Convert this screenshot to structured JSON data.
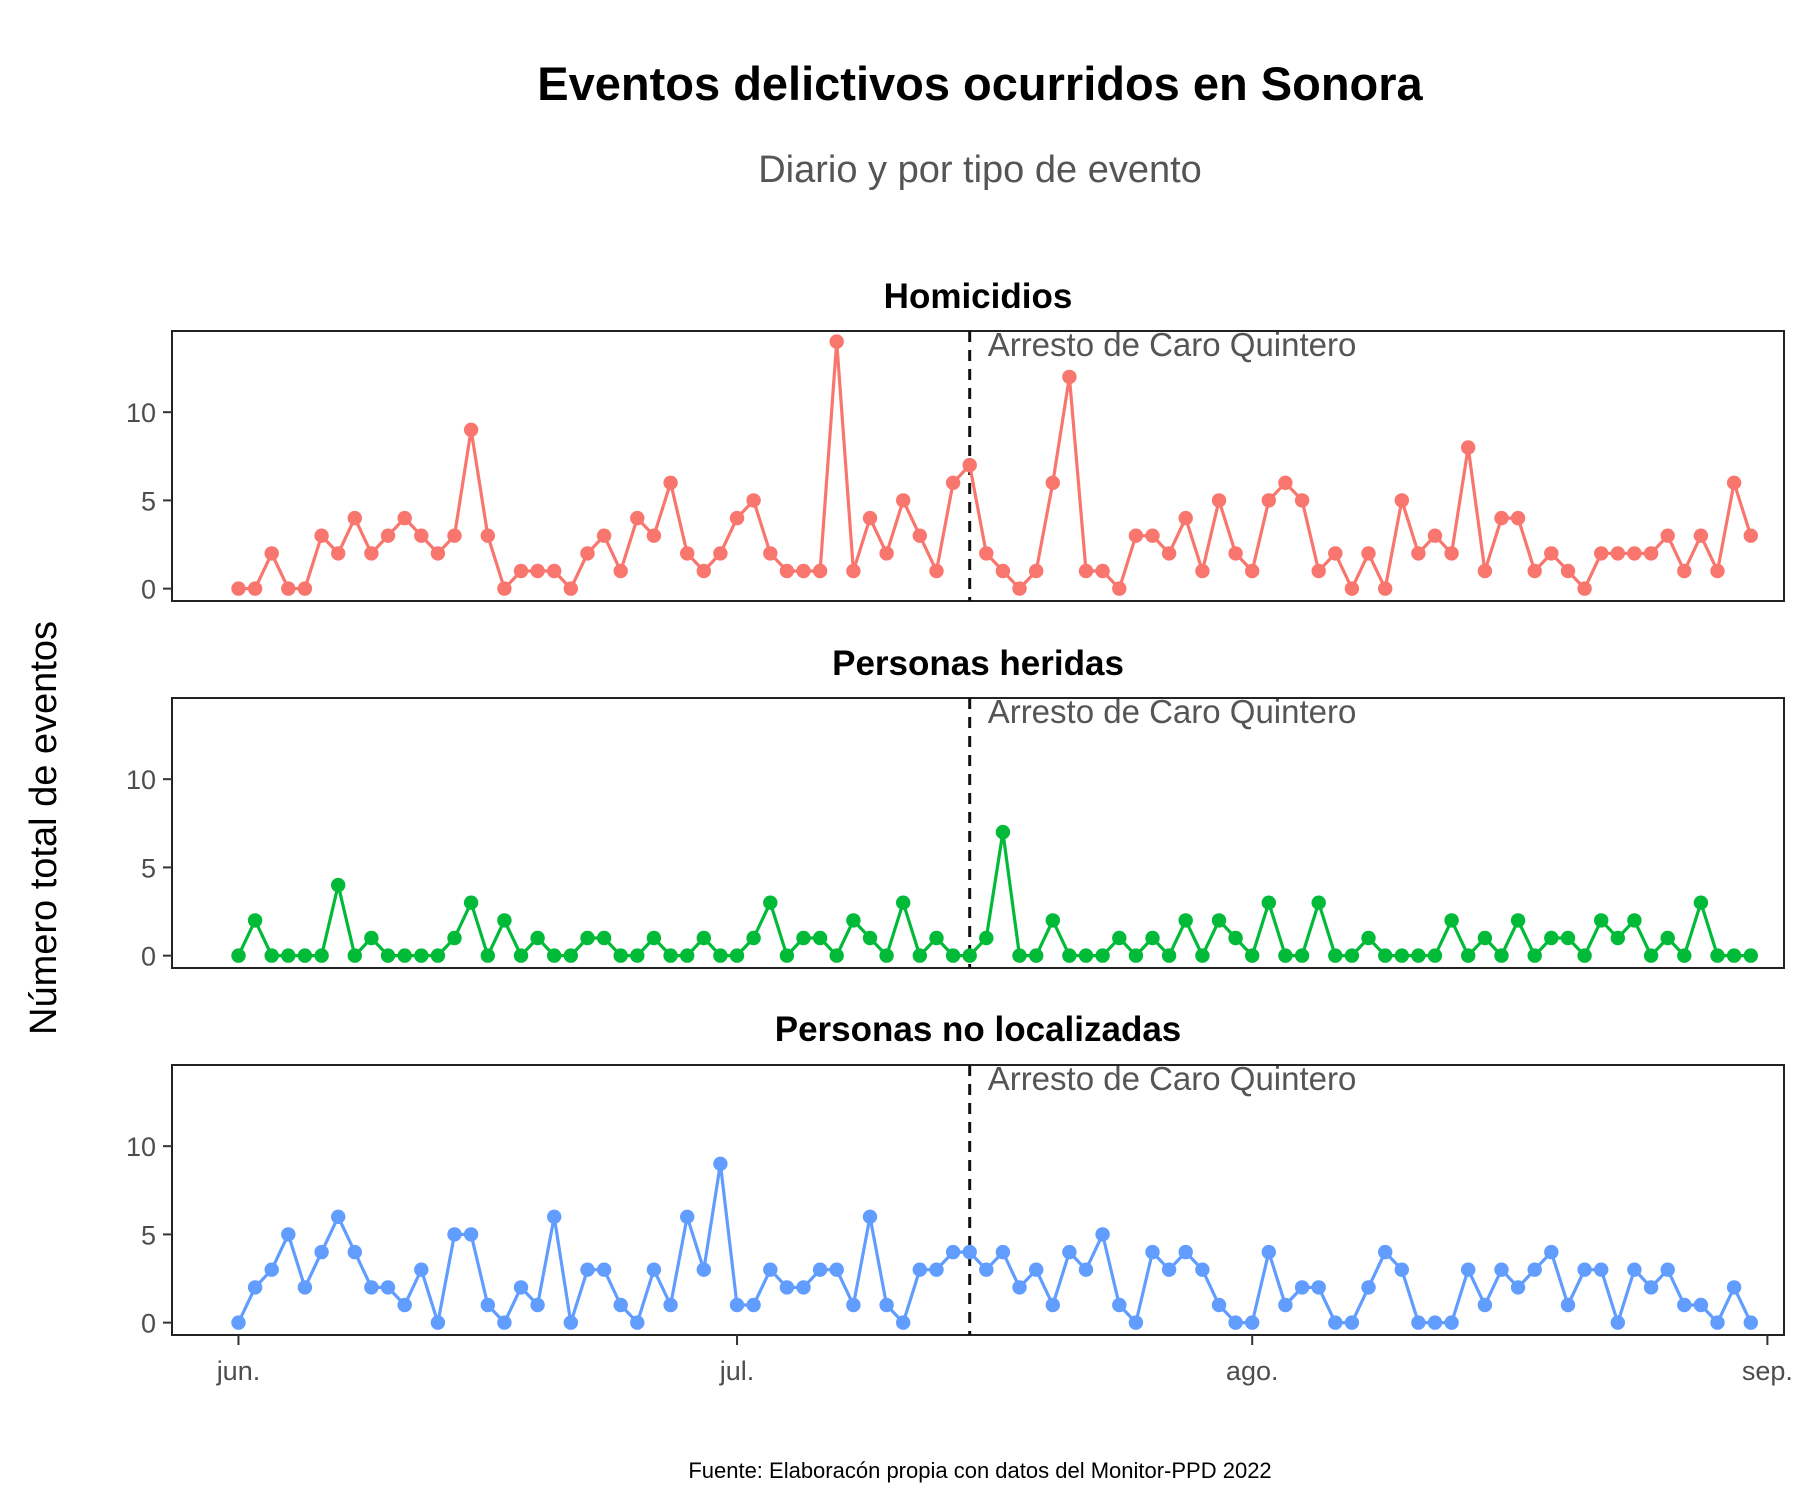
{
  "chart_data": {
    "type": "line",
    "title": "Eventos delictivos ocurridos en Sonora",
    "subtitle": "Diario y por tipo de evento",
    "ylabel": "Número total de eventos",
    "caption": "Fuente: Elaboracón propia con datos del Monitor-PPD 2022",
    "x_start": "2022-06-01",
    "x_end": "2022-08-31",
    "xlim": [
      "2022-05-28",
      "2022-09-02"
    ],
    "ylim": [
      -0.7,
      14.6
    ],
    "y_ticks": [
      0,
      5,
      10
    ],
    "x_ticks": [
      {
        "date": "2022-06-01",
        "label": "jun."
      },
      {
        "date": "2022-07-01",
        "label": "jul."
      },
      {
        "date": "2022-08-01",
        "label": "ago."
      },
      {
        "date": "2022-09-01",
        "label": "sep."
      }
    ],
    "event": {
      "date": "2022-07-15",
      "label": "Arresto de Caro Quintero"
    },
    "grid": false,
    "series": [
      {
        "name": "Homicidios",
        "color": "#F8766D",
        "values": [
          0,
          0,
          2,
          0,
          0,
          3,
          2,
          4,
          2,
          3,
          4,
          3,
          2,
          3,
          9,
          3,
          0,
          1,
          1,
          1,
          0,
          2,
          3,
          1,
          4,
          3,
          6,
          2,
          1,
          2,
          4,
          5,
          2,
          1,
          1,
          1,
          14,
          1,
          4,
          2,
          5,
          3,
          1,
          6,
          7,
          2,
          1,
          0,
          1,
          6,
          12,
          1,
          1,
          0,
          3,
          3,
          2,
          4,
          1,
          5,
          2,
          1,
          5,
          6,
          5,
          1,
          2,
          0,
          2,
          0,
          5,
          2,
          3,
          2,
          8,
          1,
          4,
          4,
          1,
          2,
          1,
          0,
          2,
          2,
          2,
          2,
          3,
          1,
          3,
          1,
          6,
          3
        ]
      },
      {
        "name": "Personas heridas",
        "color": "#00BA38",
        "values": [
          0,
          2,
          0,
          0,
          0,
          0,
          4,
          0,
          1,
          0,
          0,
          0,
          0,
          1,
          3,
          0,
          2,
          0,
          1,
          0,
          0,
          1,
          1,
          0,
          0,
          1,
          0,
          0,
          1,
          0,
          0,
          1,
          3,
          0,
          1,
          1,
          0,
          2,
          1,
          0,
          3,
          0,
          1,
          0,
          0,
          1,
          7,
          0,
          0,
          2,
          0,
          0,
          0,
          1,
          0,
          1,
          0,
          2,
          0,
          2,
          1,
          0,
          3,
          0,
          0,
          3,
          0,
          0,
          1,
          0,
          0,
          0,
          0,
          2,
          0,
          1,
          0,
          2,
          0,
          1,
          1,
          0,
          2,
          1,
          2,
          0,
          1,
          0,
          3,
          0,
          0,
          0
        ]
      },
      {
        "name": "Personas no localizadas",
        "color": "#619CFF",
        "values": [
          0,
          2,
          3,
          5,
          2,
          4,
          6,
          4,
          2,
          2,
          1,
          3,
          0,
          5,
          5,
          1,
          0,
          2,
          1,
          6,
          0,
          3,
          3,
          1,
          0,
          3,
          1,
          6,
          3,
          9,
          1,
          1,
          3,
          2,
          2,
          3,
          3,
          1,
          6,
          1,
          0,
          3,
          3,
          4,
          4,
          3,
          4,
          2,
          3,
          1,
          4,
          3,
          5,
          1,
          0,
          4,
          3,
          4,
          3,
          1,
          0,
          0,
          4,
          1,
          2,
          2,
          0,
          0,
          2,
          4,
          3,
          0,
          0,
          0,
          3,
          1,
          3,
          2,
          3,
          4,
          1,
          3,
          3,
          0,
          3,
          2,
          3,
          1,
          1,
          0,
          2,
          0
        ]
      }
    ]
  }
}
